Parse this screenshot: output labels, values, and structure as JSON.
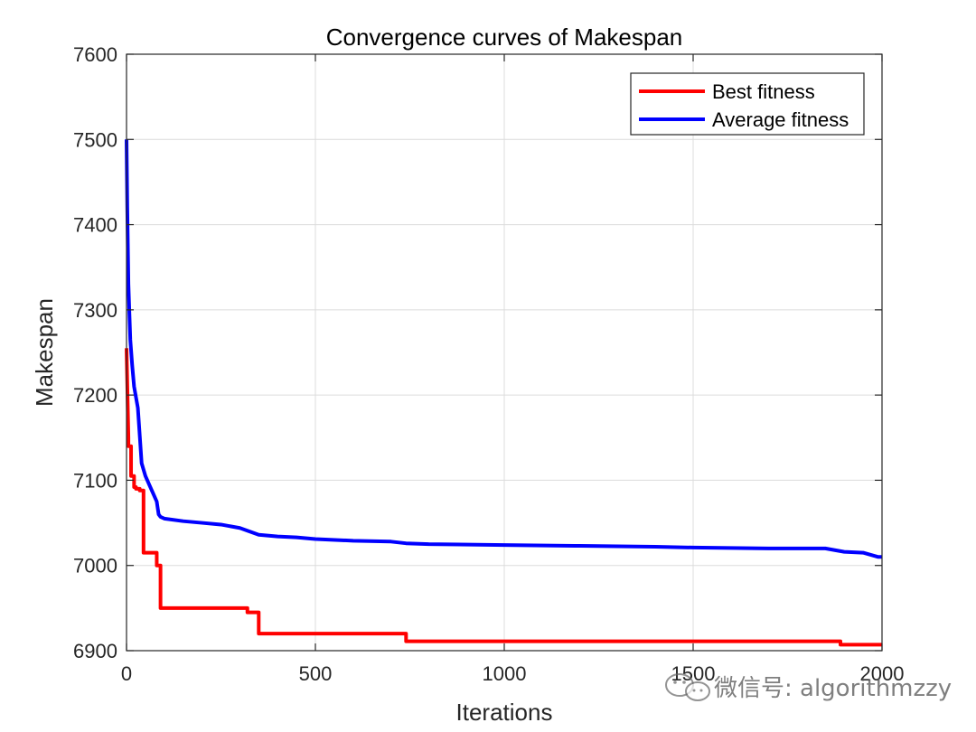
{
  "chart_data": {
    "type": "line",
    "title": "Convergence curves of Makespan",
    "xlabel": "Iterations",
    "ylabel": "Makespan",
    "xlim": [
      0,
      2000
    ],
    "ylim": [
      6900,
      7600
    ],
    "xticks": [
      0,
      500,
      1000,
      1500,
      2000
    ],
    "yticks": [
      6900,
      7000,
      7100,
      7200,
      7300,
      7400,
      7500,
      7600
    ],
    "grid": true,
    "legend_position": "top-right",
    "series": [
      {
        "name": "Best fitness",
        "color": "#ff0000",
        "x": [
          0,
          5,
          5,
          12,
          12,
          20,
          20,
          25,
          25,
          35,
          35,
          45,
          45,
          80,
          80,
          90,
          90,
          320,
          320,
          350,
          350,
          740,
          740,
          1890,
          1890,
          2000
        ],
        "y": [
          7255,
          7150,
          7140,
          7140,
          7105,
          7105,
          7092,
          7092,
          7090,
          7090,
          7088,
          7088,
          7015,
          7015,
          7000,
          7000,
          6950,
          6950,
          6945,
          6945,
          6920,
          6920,
          6911,
          6911,
          6907,
          6907
        ]
      },
      {
        "name": "Average fitness",
        "color": "#0000ff",
        "x": [
          0,
          2,
          5,
          10,
          15,
          20,
          30,
          40,
          50,
          60,
          70,
          80,
          85,
          90,
          100,
          150,
          200,
          250,
          300,
          350,
          400,
          450,
          500,
          600,
          700,
          740,
          800,
          1000,
          1200,
          1400,
          1500,
          1700,
          1850,
          1900,
          1950,
          1990,
          2000
        ],
        "y": [
          7500,
          7420,
          7330,
          7265,
          7235,
          7210,
          7185,
          7120,
          7105,
          7095,
          7085,
          7075,
          7060,
          7057,
          7055,
          7052,
          7050,
          7048,
          7044,
          7036,
          7034,
          7033,
          7031,
          7029,
          7028,
          7026,
          7025,
          7024,
          7023,
          7022,
          7021,
          7020,
          7020,
          7016,
          7015,
          7010,
          7010
        ]
      }
    ]
  },
  "watermark": {
    "text": "微信号: algorithmzzy"
  }
}
